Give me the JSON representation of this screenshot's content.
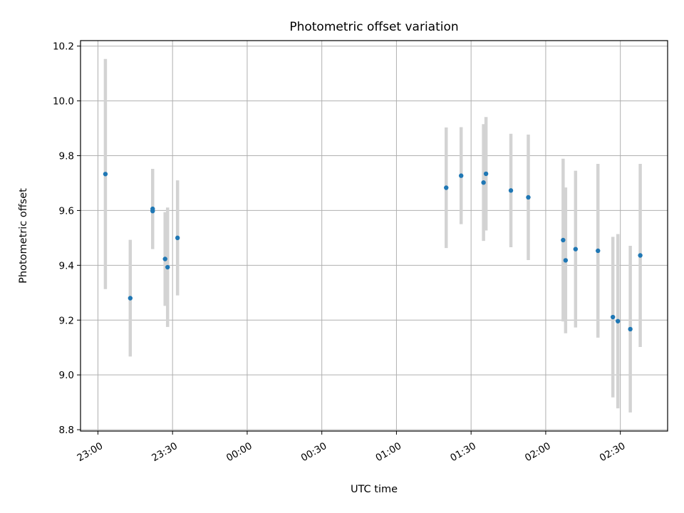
{
  "chart_data": {
    "type": "scatter",
    "title": "Photometric offset variation",
    "xlabel": "UTC time",
    "ylabel": "Photometric offset",
    "x_unit": "UTC time (HH:MM)",
    "x_range": [
      "22:53",
      "02:49"
    ],
    "ylim": [
      8.795,
      10.22
    ],
    "x_ticks": [
      "23:00",
      "23:30",
      "00:00",
      "00:30",
      "01:00",
      "01:30",
      "02:00",
      "02:30"
    ],
    "y_ticks": [
      "8.8",
      "9.0",
      "9.2",
      "9.4",
      "9.6",
      "9.8",
      "10.0",
      "10.2"
    ],
    "grid": true,
    "marker_color": "#1f77b4",
    "errorbar_color": "#d3d3d3",
    "points": [
      {
        "x": "23:03",
        "y": 9.733,
        "err": 0.42
      },
      {
        "x": "23:13",
        "y": 9.28,
        "err": 0.213
      },
      {
        "x": "23:22",
        "y": 9.598,
        "err": 0.139
      },
      {
        "x": "23:22",
        "y": 9.606,
        "err": 0.146
      },
      {
        "x": "23:27",
        "y": 9.423,
        "err": 0.171
      },
      {
        "x": "23:28",
        "y": 9.393,
        "err": 0.218
      },
      {
        "x": "23:32",
        "y": 9.5,
        "err": 0.21
      },
      {
        "x": "01:20",
        "y": 9.683,
        "err": 0.22
      },
      {
        "x": "01:26",
        "y": 9.727,
        "err": 0.177
      },
      {
        "x": "01:35",
        "y": 9.702,
        "err": 0.213
      },
      {
        "x": "01:36",
        "y": 9.734,
        "err": 0.207
      },
      {
        "x": "01:46",
        "y": 9.673,
        "err": 0.207
      },
      {
        "x": "01:53",
        "y": 9.648,
        "err": 0.229
      },
      {
        "x": "02:07",
        "y": 9.492,
        "err": 0.297
      },
      {
        "x": "02:08",
        "y": 9.418,
        "err": 0.266
      },
      {
        "x": "02:12",
        "y": 9.459,
        "err": 0.286
      },
      {
        "x": "02:21",
        "y": 9.453,
        "err": 0.317
      },
      {
        "x": "02:27",
        "y": 9.211,
        "err": 0.293
      },
      {
        "x": "02:29",
        "y": 9.196,
        "err": 0.318
      },
      {
        "x": "02:34",
        "y": 9.167,
        "err": 0.304
      },
      {
        "x": "02:38",
        "y": 9.436,
        "err": 0.334
      }
    ]
  }
}
